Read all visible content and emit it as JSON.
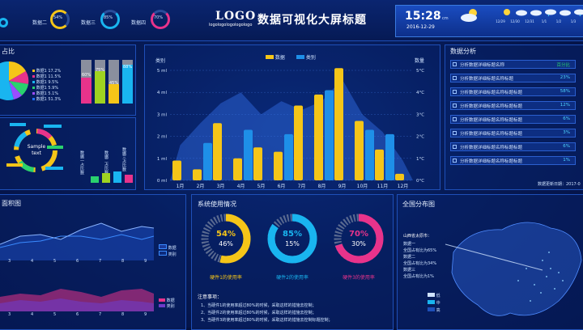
{
  "header": {
    "logo": "LOGO",
    "logo_sub": "logologologologologo",
    "title": "数据可视化大屏标题",
    "time": "15:28",
    "time_unit": "cm",
    "date": "2016-12-29"
  },
  "top_rings": [
    {
      "label": "数据二",
      "value": "54%",
      "color": "#f5c518"
    },
    {
      "label": "数据三",
      "value": "85%",
      "color": "#19b5f0"
    },
    {
      "label": "数据四",
      "value": "70%",
      "color": "#e8338b"
    }
  ],
  "left_top": {
    "title": "占比",
    "legend": [
      {
        "name": "数据1",
        "pct": "17.2%",
        "color": "#f5c518"
      },
      {
        "name": "数据1",
        "pct": "11.5%",
        "color": "#e8338b"
      },
      {
        "name": "数据1",
        "pct": "9.5%",
        "color": "#19b5f0"
      },
      {
        "name": "数据1",
        "pct": "5.9%",
        "color": "#2ad16e"
      },
      {
        "name": "数据1",
        "pct": "5.1%",
        "color": "#9b4dff"
      },
      {
        "name": "数据1",
        "pct": "51.3%",
        "color": "#1e6fff"
      }
    ],
    "bar_labels": [
      "60%",
      "75%",
      "45%",
      "88%"
    ]
  },
  "left_mid": {
    "center_label": "Sample text",
    "vertical_labels": [
      "数据一占比数",
      "数据二占比数",
      "数据三占比数"
    ]
  },
  "main_chart": {
    "left_axis": "类别",
    "right_axis": "数量",
    "legend": [
      "数据",
      "类别"
    ],
    "y_left": [
      "5 ml",
      "4 ml",
      "3 ml",
      "2 ml",
      "1 ml",
      "0 ml"
    ],
    "y_right": [
      "5°C",
      "4°C",
      "3°C",
      "2°C",
      "1°C",
      "0°C"
    ]
  },
  "chart_data": {
    "type": "bar",
    "categories": [
      "1月",
      "2月",
      "3月",
      "4月",
      "5月",
      "6月",
      "7月",
      "8月",
      "9月",
      "10月",
      "11月",
      "12月"
    ],
    "series": [
      {
        "name": "数据",
        "values": [
          0.9,
          0.5,
          2.6,
          1.0,
          1.5,
          1.3,
          3.4,
          3.9,
          5.1,
          2.7,
          1.4,
          0.3
        ]
      },
      {
        "name": "类别",
        "values": [
          0,
          1.7,
          0,
          2.3,
          0,
          2.1,
          0,
          4.1,
          0,
          2.3,
          2.1,
          0
        ]
      }
    ],
    "area_values": [
      1.6,
      2.6,
      3.5,
      4.0,
      3.0,
      3.6,
      3.2,
      3.6,
      4.6,
      3.0,
      2.2,
      0.9
    ],
    "ylim": [
      0,
      5
    ]
  },
  "analysis": {
    "title": "数据分析",
    "rows": [
      {
        "text": "分析数据详细标题名称",
        "value": "百分比"
      },
      {
        "text": "分析数据详细标题名称标题",
        "value": "23%"
      },
      {
        "text": "分析数据详细标题名称标题标题",
        "value": "58%"
      },
      {
        "text": "分析数据详细标题名称标题标题",
        "value": "12%"
      },
      {
        "text": "分析数据详细标题名称标题标题",
        "value": "6%"
      },
      {
        "text": "分析数据详细标题名称标题标题",
        "value": "3%"
      },
      {
        "text": "分析数据详细标题名称标题标题",
        "value": "6%"
      },
      {
        "text": "分析数据详细标题名称标题标题",
        "value": "1%"
      }
    ],
    "updated": "数据更新日期：2017-0"
  },
  "area_panel": {
    "title": "面积图",
    "months": [
      "3",
      "4",
      "5",
      "6",
      "7",
      "8",
      "9"
    ],
    "legend_top": [
      "数据",
      "类别"
    ],
    "legend_bottom": [
      "数据",
      "类别"
    ]
  },
  "system": {
    "title": "系统使用情况",
    "rings": [
      {
        "main": "54%",
        "sub": "46%",
        "label": "硬件1的使用率",
        "color": "#f5c518"
      },
      {
        "main": "85%",
        "sub": "15%",
        "label": "硬件2的使用率",
        "color": "#19b5f0"
      },
      {
        "main": "70%",
        "sub": "30%",
        "label": "硬件3的使用率",
        "color": "#e8338b"
      }
    ],
    "notes_title": "注意事项：",
    "notes": [
      "1、当硬件1的使用率超过80%的时候，采取这样的措施去控制；",
      "2、当硬件2的使用率超过80%的时候，采取这样的措施去控制；",
      "3、当硬件3的使用率超过80%的时候，采取这样的措施去控制标题控制；"
    ]
  },
  "map": {
    "title": "全国分布图",
    "region": "山西省太原市：",
    "lines": [
      "数据一",
      "全国占有比为65%",
      "数据二",
      "全国占有比为34%",
      "数据三",
      "全国占有比为1%"
    ],
    "legend": [
      "低",
      "中",
      "高"
    ]
  },
  "weather": {
    "items": [
      "12/29",
      "12/30",
      "12/31",
      "1/1",
      "1/2",
      "1/3",
      "1/4"
    ]
  }
}
